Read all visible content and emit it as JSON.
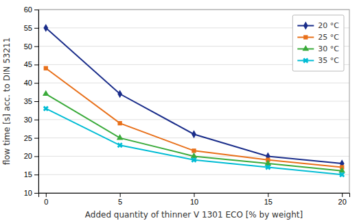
{
  "chart_data": {
    "type": "line",
    "xlabel": "Added quantity of thinner V 1301 ECO [% by weight]",
    "ylabel": "flow time [s] acc. to DIN 53211",
    "x": [
      0,
      5,
      10,
      15,
      20
    ],
    "series": [
      {
        "name": "20 °C",
        "color": "#1a2d8a",
        "marker": "diamond",
        "values": [
          55,
          37,
          26,
          20,
          18
        ]
      },
      {
        "name": "25 °C",
        "color": "#e8701a",
        "marker": "square",
        "values": [
          44,
          29,
          21.5,
          19,
          17
        ]
      },
      {
        "name": "30 °C",
        "color": "#3aaa3a",
        "marker": "triangle",
        "values": [
          37,
          25,
          20,
          18,
          16
        ]
      },
      {
        "name": "35 °C",
        "color": "#00bcd4",
        "marker": "x",
        "values": [
          33,
          23,
          19,
          17,
          15
        ]
      }
    ],
    "xlim": [
      -0.5,
      20.5
    ],
    "ylim": [
      10,
      60
    ],
    "xticks": [
      0,
      5,
      10,
      15,
      20
    ],
    "yticks": [
      10,
      15,
      20,
      25,
      30,
      35,
      40,
      45,
      50,
      55,
      60
    ],
    "grid": "y",
    "legend": "upper right"
  }
}
